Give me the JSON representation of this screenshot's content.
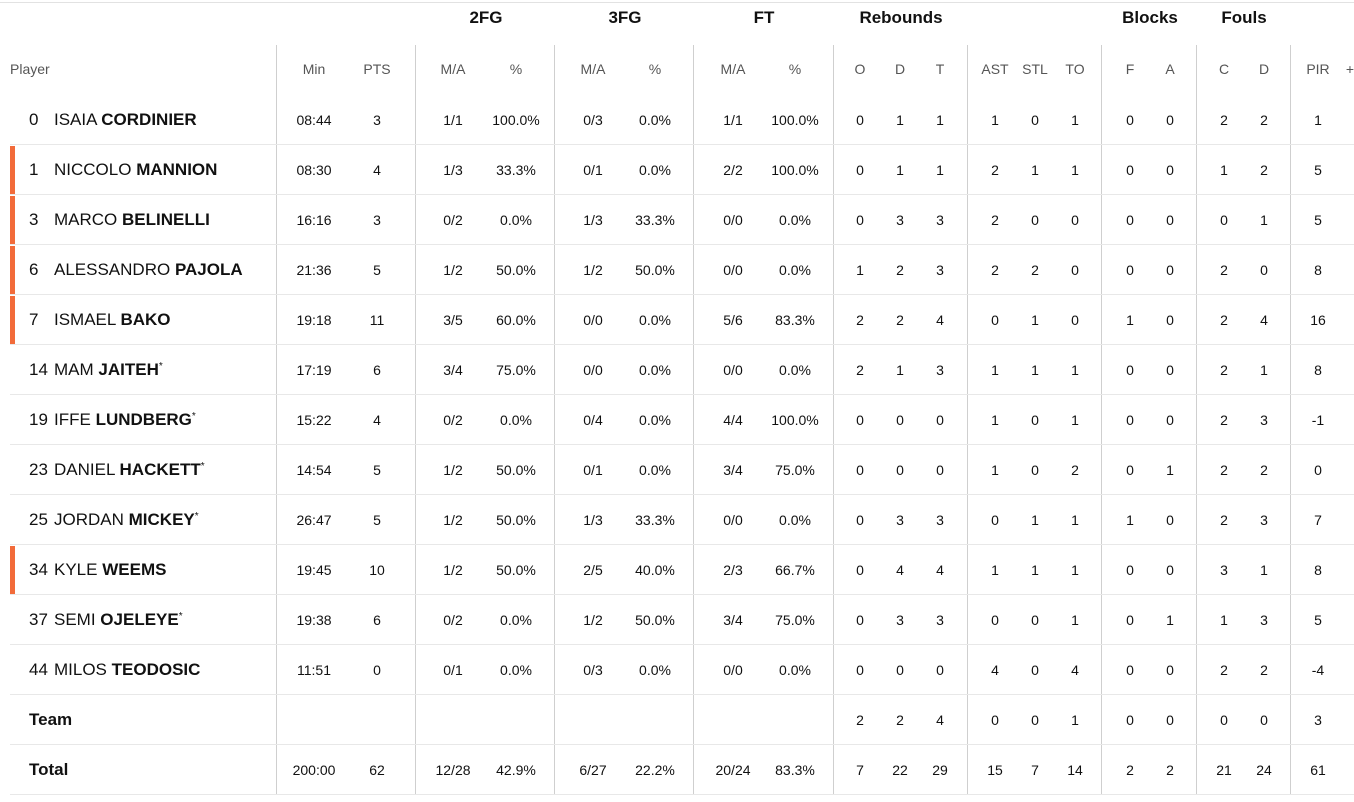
{
  "groups": {
    "fg2": "2FG",
    "fg3": "3FG",
    "ft": "FT",
    "rebounds": "Rebounds",
    "blocks": "Blocks",
    "fouls": "Fouls"
  },
  "headers": {
    "player": "Player",
    "min": "Min",
    "pts": "PTS",
    "fg2_ma": "M/A",
    "fg2_pct": "%",
    "fg3_ma": "M/A",
    "fg3_pct": "%",
    "ft_ma": "M/A",
    "ft_pct": "%",
    "reb_o": "O",
    "reb_d": "D",
    "reb_t": "T",
    "ast": "AST",
    "stl": "STL",
    "to": "TO",
    "blk_f": "F",
    "blk_a": "A",
    "foul_c": "C",
    "foul_d": "D",
    "pir": "PIR",
    "extra": "+"
  },
  "marker_color": "#f26b3a",
  "players": [
    {
      "num": "0",
      "first": "ISAIA",
      "last": "CORDINIER",
      "star": "",
      "marker": false,
      "min": "08:44",
      "pts": "3",
      "fg2_ma": "1/1",
      "fg2_pct": "100.0%",
      "fg3_ma": "0/3",
      "fg3_pct": "0.0%",
      "ft_ma": "1/1",
      "ft_pct": "100.0%",
      "reb_o": "0",
      "reb_d": "1",
      "reb_t": "1",
      "ast": "1",
      "stl": "0",
      "to": "1",
      "blk_f": "0",
      "blk_a": "0",
      "foul_c": "2",
      "foul_d": "2",
      "pir": "1"
    },
    {
      "num": "1",
      "first": "NICCOLO",
      "last": "MANNION",
      "star": "",
      "marker": true,
      "min": "08:30",
      "pts": "4",
      "fg2_ma": "1/3",
      "fg2_pct": "33.3%",
      "fg3_ma": "0/1",
      "fg3_pct": "0.0%",
      "ft_ma": "2/2",
      "ft_pct": "100.0%",
      "reb_o": "0",
      "reb_d": "1",
      "reb_t": "1",
      "ast": "2",
      "stl": "1",
      "to": "1",
      "blk_f": "0",
      "blk_a": "0",
      "foul_c": "1",
      "foul_d": "2",
      "pir": "5"
    },
    {
      "num": "3",
      "first": "MARCO",
      "last": "BELINELLI",
      "star": "",
      "marker": true,
      "min": "16:16",
      "pts": "3",
      "fg2_ma": "0/2",
      "fg2_pct": "0.0%",
      "fg3_ma": "1/3",
      "fg3_pct": "33.3%",
      "ft_ma": "0/0",
      "ft_pct": "0.0%",
      "reb_o": "0",
      "reb_d": "3",
      "reb_t": "3",
      "ast": "2",
      "stl": "0",
      "to": "0",
      "blk_f": "0",
      "blk_a": "0",
      "foul_c": "0",
      "foul_d": "1",
      "pir": "5"
    },
    {
      "num": "6",
      "first": "ALESSANDRO",
      "last": "PAJOLA",
      "star": "",
      "marker": true,
      "min": "21:36",
      "pts": "5",
      "fg2_ma": "1/2",
      "fg2_pct": "50.0%",
      "fg3_ma": "1/2",
      "fg3_pct": "50.0%",
      "ft_ma": "0/0",
      "ft_pct": "0.0%",
      "reb_o": "1",
      "reb_d": "2",
      "reb_t": "3",
      "ast": "2",
      "stl": "2",
      "to": "0",
      "blk_f": "0",
      "blk_a": "0",
      "foul_c": "2",
      "foul_d": "0",
      "pir": "8"
    },
    {
      "num": "7",
      "first": "ISMAEL",
      "last": "BAKO",
      "star": "",
      "marker": true,
      "min": "19:18",
      "pts": "11",
      "fg2_ma": "3/5",
      "fg2_pct": "60.0%",
      "fg3_ma": "0/0",
      "fg3_pct": "0.0%",
      "ft_ma": "5/6",
      "ft_pct": "83.3%",
      "reb_o": "2",
      "reb_d": "2",
      "reb_t": "4",
      "ast": "0",
      "stl": "1",
      "to": "0",
      "blk_f": "1",
      "blk_a": "0",
      "foul_c": "2",
      "foul_d": "4",
      "pir": "16"
    },
    {
      "num": "14",
      "first": "MAM",
      "last": "JAITEH",
      "star": "*",
      "marker": false,
      "min": "17:19",
      "pts": "6",
      "fg2_ma": "3/4",
      "fg2_pct": "75.0%",
      "fg3_ma": "0/0",
      "fg3_pct": "0.0%",
      "ft_ma": "0/0",
      "ft_pct": "0.0%",
      "reb_o": "2",
      "reb_d": "1",
      "reb_t": "3",
      "ast": "1",
      "stl": "1",
      "to": "1",
      "blk_f": "0",
      "blk_a": "0",
      "foul_c": "2",
      "foul_d": "1",
      "pir": "8"
    },
    {
      "num": "19",
      "first": "IFFE",
      "last": "LUNDBERG",
      "star": "*",
      "marker": false,
      "min": "15:22",
      "pts": "4",
      "fg2_ma": "0/2",
      "fg2_pct": "0.0%",
      "fg3_ma": "0/4",
      "fg3_pct": "0.0%",
      "ft_ma": "4/4",
      "ft_pct": "100.0%",
      "reb_o": "0",
      "reb_d": "0",
      "reb_t": "0",
      "ast": "1",
      "stl": "0",
      "to": "1",
      "blk_f": "0",
      "blk_a": "0",
      "foul_c": "2",
      "foul_d": "3",
      "pir": "-1"
    },
    {
      "num": "23",
      "first": "DANIEL",
      "last": "HACKETT",
      "star": "*",
      "marker": false,
      "min": "14:54",
      "pts": "5",
      "fg2_ma": "1/2",
      "fg2_pct": "50.0%",
      "fg3_ma": "0/1",
      "fg3_pct": "0.0%",
      "ft_ma": "3/4",
      "ft_pct": "75.0%",
      "reb_o": "0",
      "reb_d": "0",
      "reb_t": "0",
      "ast": "1",
      "stl": "0",
      "to": "2",
      "blk_f": "0",
      "blk_a": "1",
      "foul_c": "2",
      "foul_d": "2",
      "pir": "0"
    },
    {
      "num": "25",
      "first": "JORDAN",
      "last": "MICKEY",
      "star": "*",
      "marker": false,
      "min": "26:47",
      "pts": "5",
      "fg2_ma": "1/2",
      "fg2_pct": "50.0%",
      "fg3_ma": "1/3",
      "fg3_pct": "33.3%",
      "ft_ma": "0/0",
      "ft_pct": "0.0%",
      "reb_o": "0",
      "reb_d": "3",
      "reb_t": "3",
      "ast": "0",
      "stl": "1",
      "to": "1",
      "blk_f": "1",
      "blk_a": "0",
      "foul_c": "2",
      "foul_d": "3",
      "pir": "7"
    },
    {
      "num": "34",
      "first": "KYLE",
      "last": "WEEMS",
      "star": "",
      "marker": true,
      "min": "19:45",
      "pts": "10",
      "fg2_ma": "1/2",
      "fg2_pct": "50.0%",
      "fg3_ma": "2/5",
      "fg3_pct": "40.0%",
      "ft_ma": "2/3",
      "ft_pct": "66.7%",
      "reb_o": "0",
      "reb_d": "4",
      "reb_t": "4",
      "ast": "1",
      "stl": "1",
      "to": "1",
      "blk_f": "0",
      "blk_a": "0",
      "foul_c": "3",
      "foul_d": "1",
      "pir": "8"
    },
    {
      "num": "37",
      "first": "SEMI",
      "last": "OJELEYE",
      "star": "*",
      "marker": false,
      "min": "19:38",
      "pts": "6",
      "fg2_ma": "0/2",
      "fg2_pct": "0.0%",
      "fg3_ma": "1/2",
      "fg3_pct": "50.0%",
      "ft_ma": "3/4",
      "ft_pct": "75.0%",
      "reb_o": "0",
      "reb_d": "3",
      "reb_t": "3",
      "ast": "0",
      "stl": "0",
      "to": "1",
      "blk_f": "0",
      "blk_a": "1",
      "foul_c": "1",
      "foul_d": "3",
      "pir": "5"
    },
    {
      "num": "44",
      "first": "MILOS",
      "last": "TEODOSIC",
      "star": "",
      "marker": false,
      "min": "11:51",
      "pts": "0",
      "fg2_ma": "0/1",
      "fg2_pct": "0.0%",
      "fg3_ma": "0/3",
      "fg3_pct": "0.0%",
      "ft_ma": "0/0",
      "ft_pct": "0.0%",
      "reb_o": "0",
      "reb_d": "0",
      "reb_t": "0",
      "ast": "4",
      "stl": "0",
      "to": "4",
      "blk_f": "0",
      "blk_a": "0",
      "foul_c": "2",
      "foul_d": "2",
      "pir": "-4"
    }
  ],
  "team": {
    "label": "Team",
    "min": "",
    "pts": "",
    "fg2_ma": "",
    "fg2_pct": "",
    "fg3_ma": "",
    "fg3_pct": "",
    "ft_ma": "",
    "ft_pct": "",
    "reb_o": "2",
    "reb_d": "2",
    "reb_t": "4",
    "ast": "0",
    "stl": "0",
    "to": "1",
    "blk_f": "0",
    "blk_a": "0",
    "foul_c": "0",
    "foul_d": "0",
    "pir": "3"
  },
  "total": {
    "label": "Total",
    "min": "200:00",
    "pts": "62",
    "fg2_ma": "12/28",
    "fg2_pct": "42.9%",
    "fg3_ma": "6/27",
    "fg3_pct": "22.2%",
    "ft_ma": "20/24",
    "ft_pct": "83.3%",
    "reb_o": "7",
    "reb_d": "22",
    "reb_t": "29",
    "ast": "15",
    "stl": "7",
    "to": "14",
    "blk_f": "2",
    "blk_a": "2",
    "foul_c": "21",
    "foul_d": "24",
    "pir": "61"
  }
}
